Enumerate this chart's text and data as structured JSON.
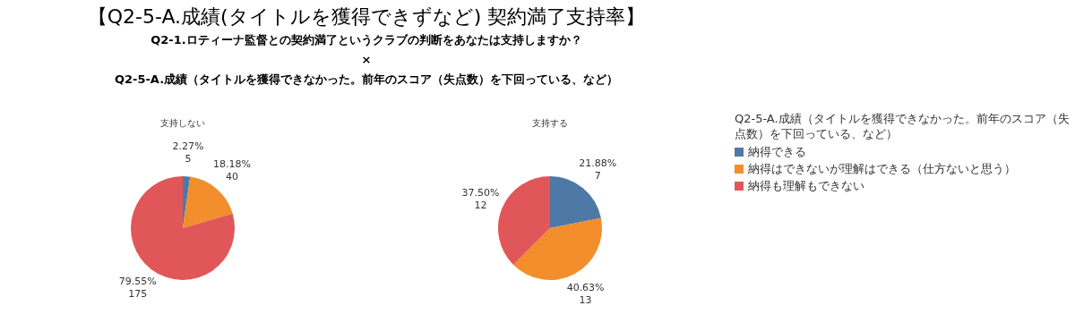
{
  "chart_data": [
    {
      "type": "pie",
      "title": "支持しない",
      "legend": "right",
      "legend_title": "Q2-5-A.成績（タイトルを獲得できなかった。前年のスコア（失点数）を下回っている、など）",
      "annotations": [
        "【Q2-5-A.成績(タイトルを獲得できずなど)  契約満了支持率】",
        "Q2-1.ロティーナ監督との契約満了というクラブの判断をあなたは支持しますか？",
        "×",
        "Q2-5-A.成績（タイトルを獲得できなかった。前年のスコア（失点数）を下回っている、など）"
      ],
      "categories": [
        "納得できる",
        "納得はできないが理解はできる（仕方ないと思う）",
        "納得も理解もできない"
      ],
      "values": [
        5,
        40,
        175
      ],
      "colors": [
        "#4e79a7",
        "#f28e2b",
        "#e15759"
      ],
      "value_labels": [
        "2.27%\n5",
        "18.18%\n40",
        "79.55%\n175"
      ]
    },
    {
      "type": "pie",
      "title": "支持する",
      "categories": [
        null,
        null,
        null
      ],
      "values": [
        7,
        13,
        12
      ],
      "colors": [
        "#4e79a7",
        "#f28e2b",
        "#e15759"
      ],
      "value_labels": [
        "21.88%\n7",
        "40.63%\n13",
        "37.50%\n12"
      ]
    }
  ]
}
